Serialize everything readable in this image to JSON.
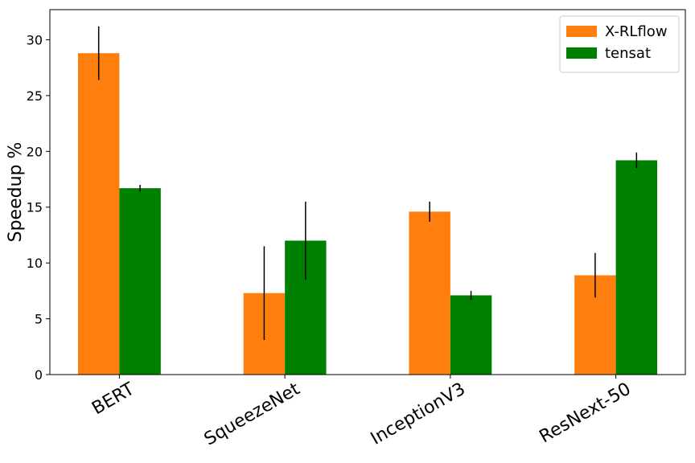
{
  "chart_data": {
    "type": "bar",
    "y_label": "Speedup %",
    "categories": [
      "BERT",
      "SqueezeNet",
      "InceptionV3",
      "ResNext-50"
    ],
    "series": [
      {
        "name": "X-RLflow",
        "color": "#ff7f0e",
        "values": [
          28.8,
          7.3,
          14.6,
          8.9
        ],
        "errors": [
          2.4,
          4.2,
          0.9,
          2.0
        ]
      },
      {
        "name": "tensat",
        "color": "#008000",
        "values": [
          16.7,
          12.0,
          7.1,
          19.2
        ],
        "errors": [
          0.3,
          3.5,
          0.4,
          0.7
        ]
      }
    ],
    "ylim": [
      0,
      32.7
    ],
    "yticks": [
      0,
      5,
      10,
      15,
      20,
      25,
      30
    ],
    "legend": "upper right"
  }
}
